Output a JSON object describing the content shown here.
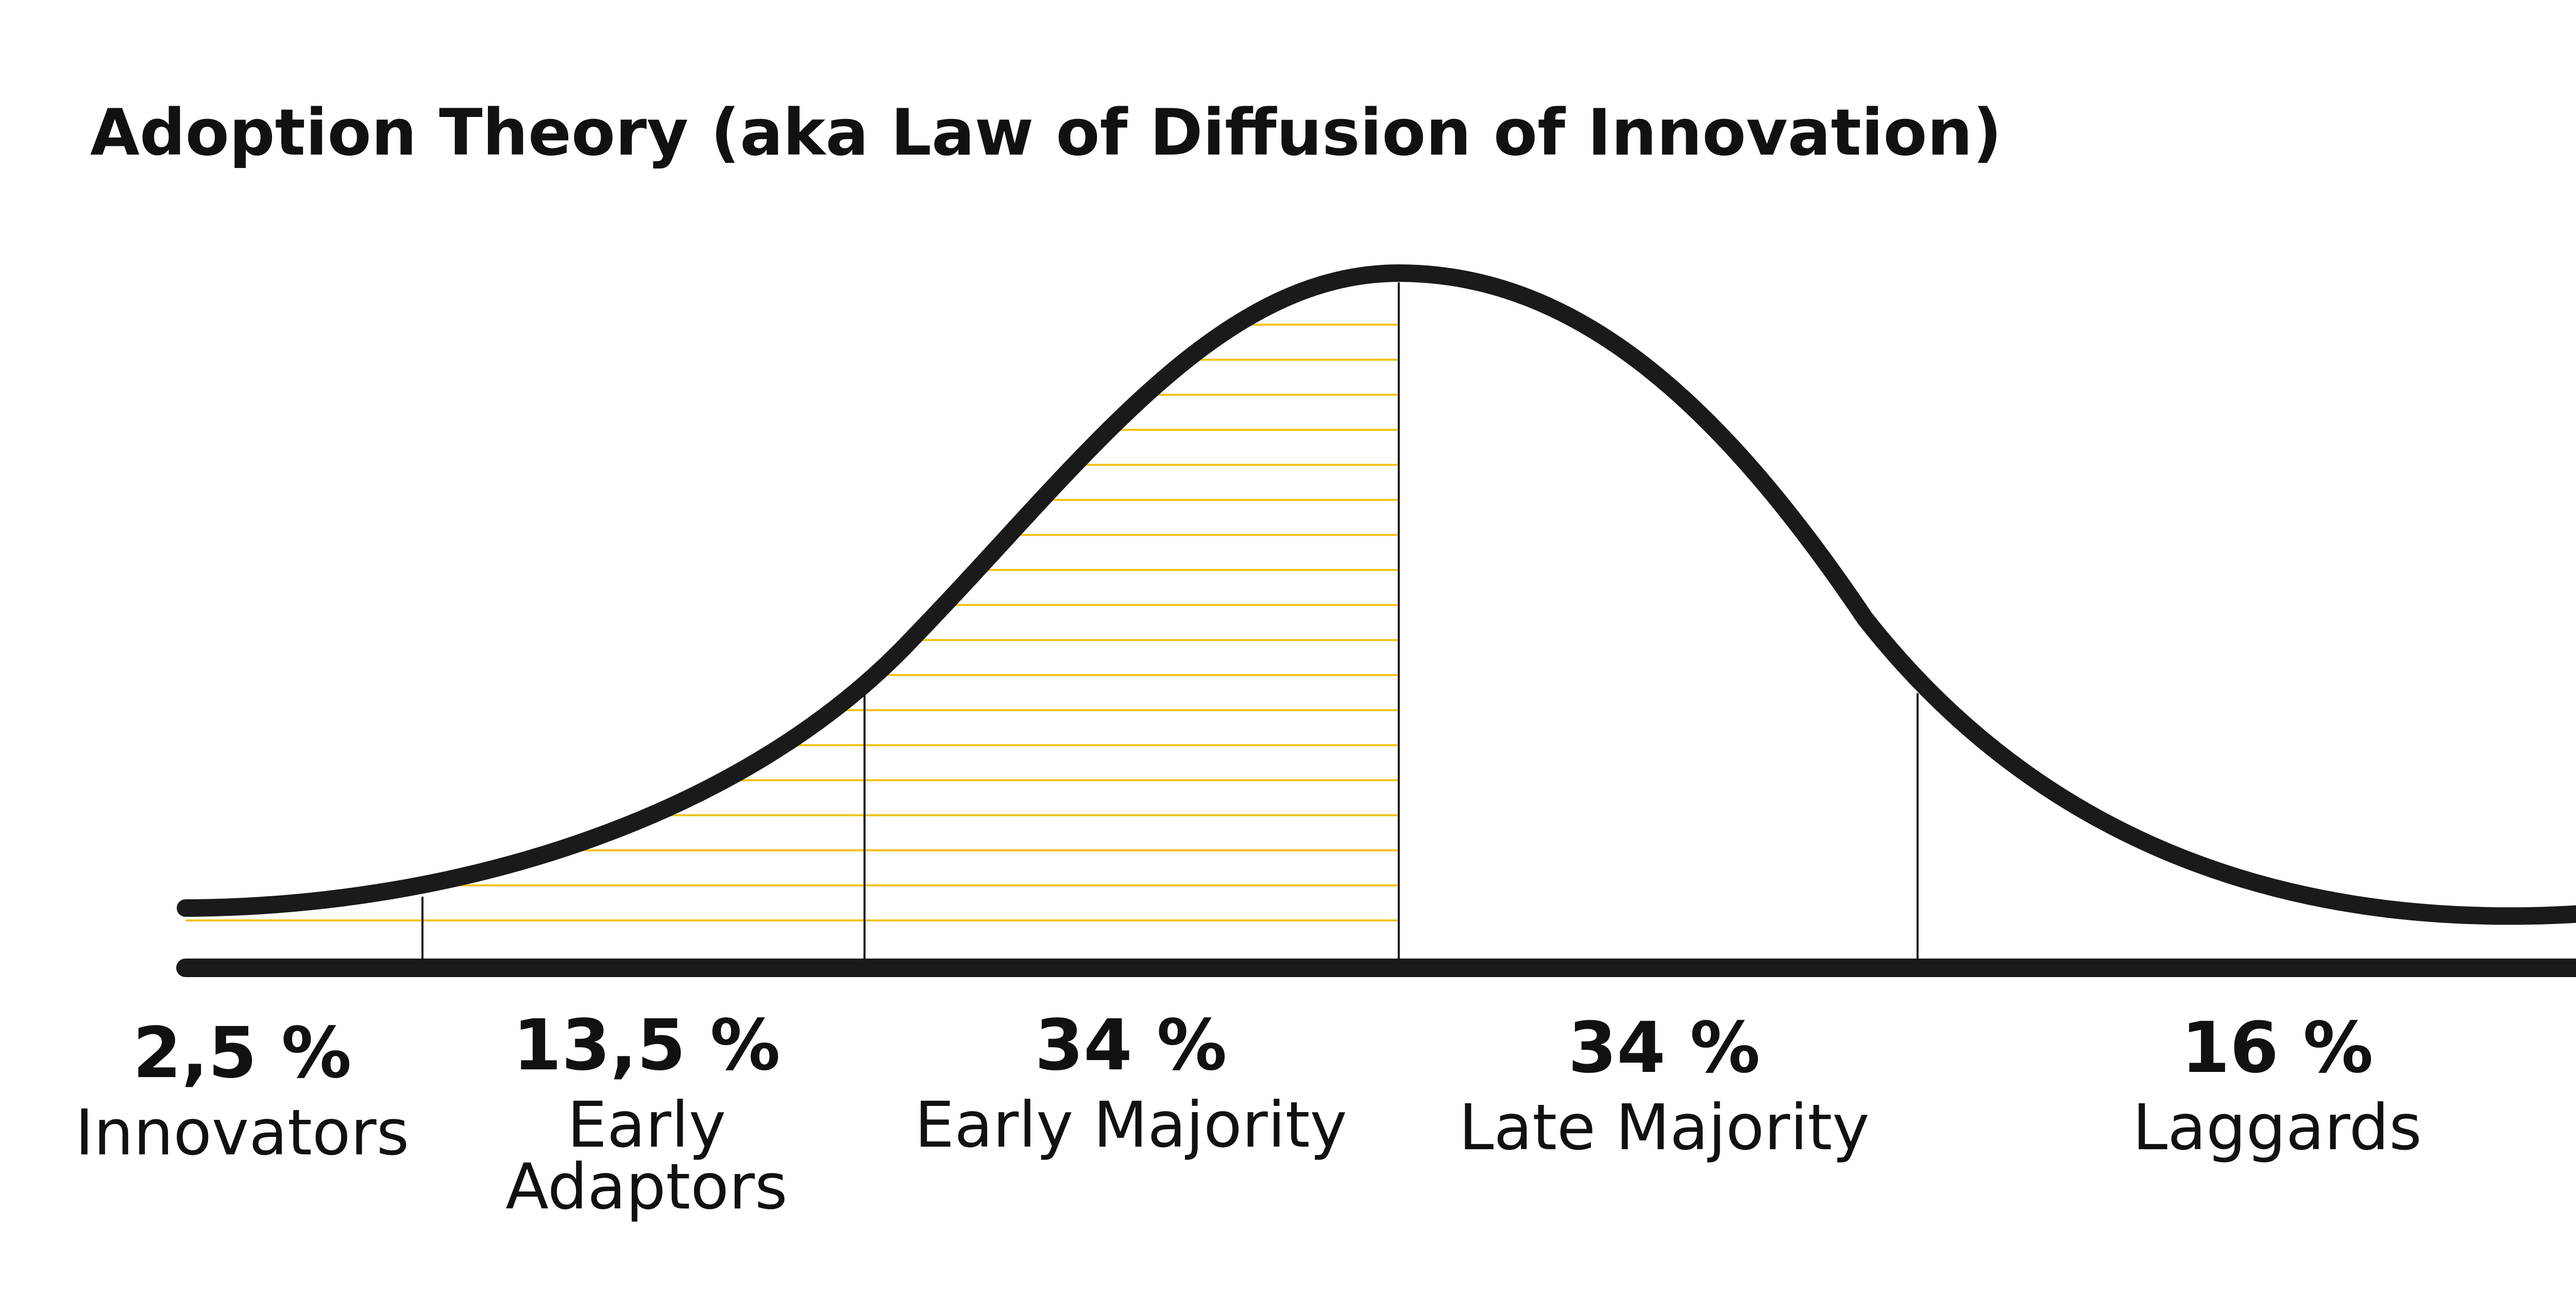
{
  "title": "Adoption Theory (aka Law of Diffusion of Innovation)",
  "colors": {
    "curve": "#1a1a1a",
    "baseline": "#1a1a1a",
    "divider": "#1a1a1a",
    "hatch": "#f2c31a",
    "text": "#111111"
  },
  "segments": [
    {
      "id": "innovators",
      "percent": "2,5 %",
      "label_lines": [
        "Innovators"
      ]
    },
    {
      "id": "early-adaptors",
      "percent": "13,5 %",
      "label_lines": [
        "Early",
        "Adaptors"
      ]
    },
    {
      "id": "early-majority",
      "percent": "34 %",
      "label_lines": [
        "Early Majority"
      ]
    },
    {
      "id": "late-majority",
      "percent": "34 %",
      "label_lines": [
        "Late Majority"
      ]
    },
    {
      "id": "laggards",
      "percent": "16 %",
      "label_lines": [
        "Laggards"
      ]
    }
  ],
  "highlighted_segments": [
    "innovators",
    "early-adaptors",
    "early-majority"
  ]
}
